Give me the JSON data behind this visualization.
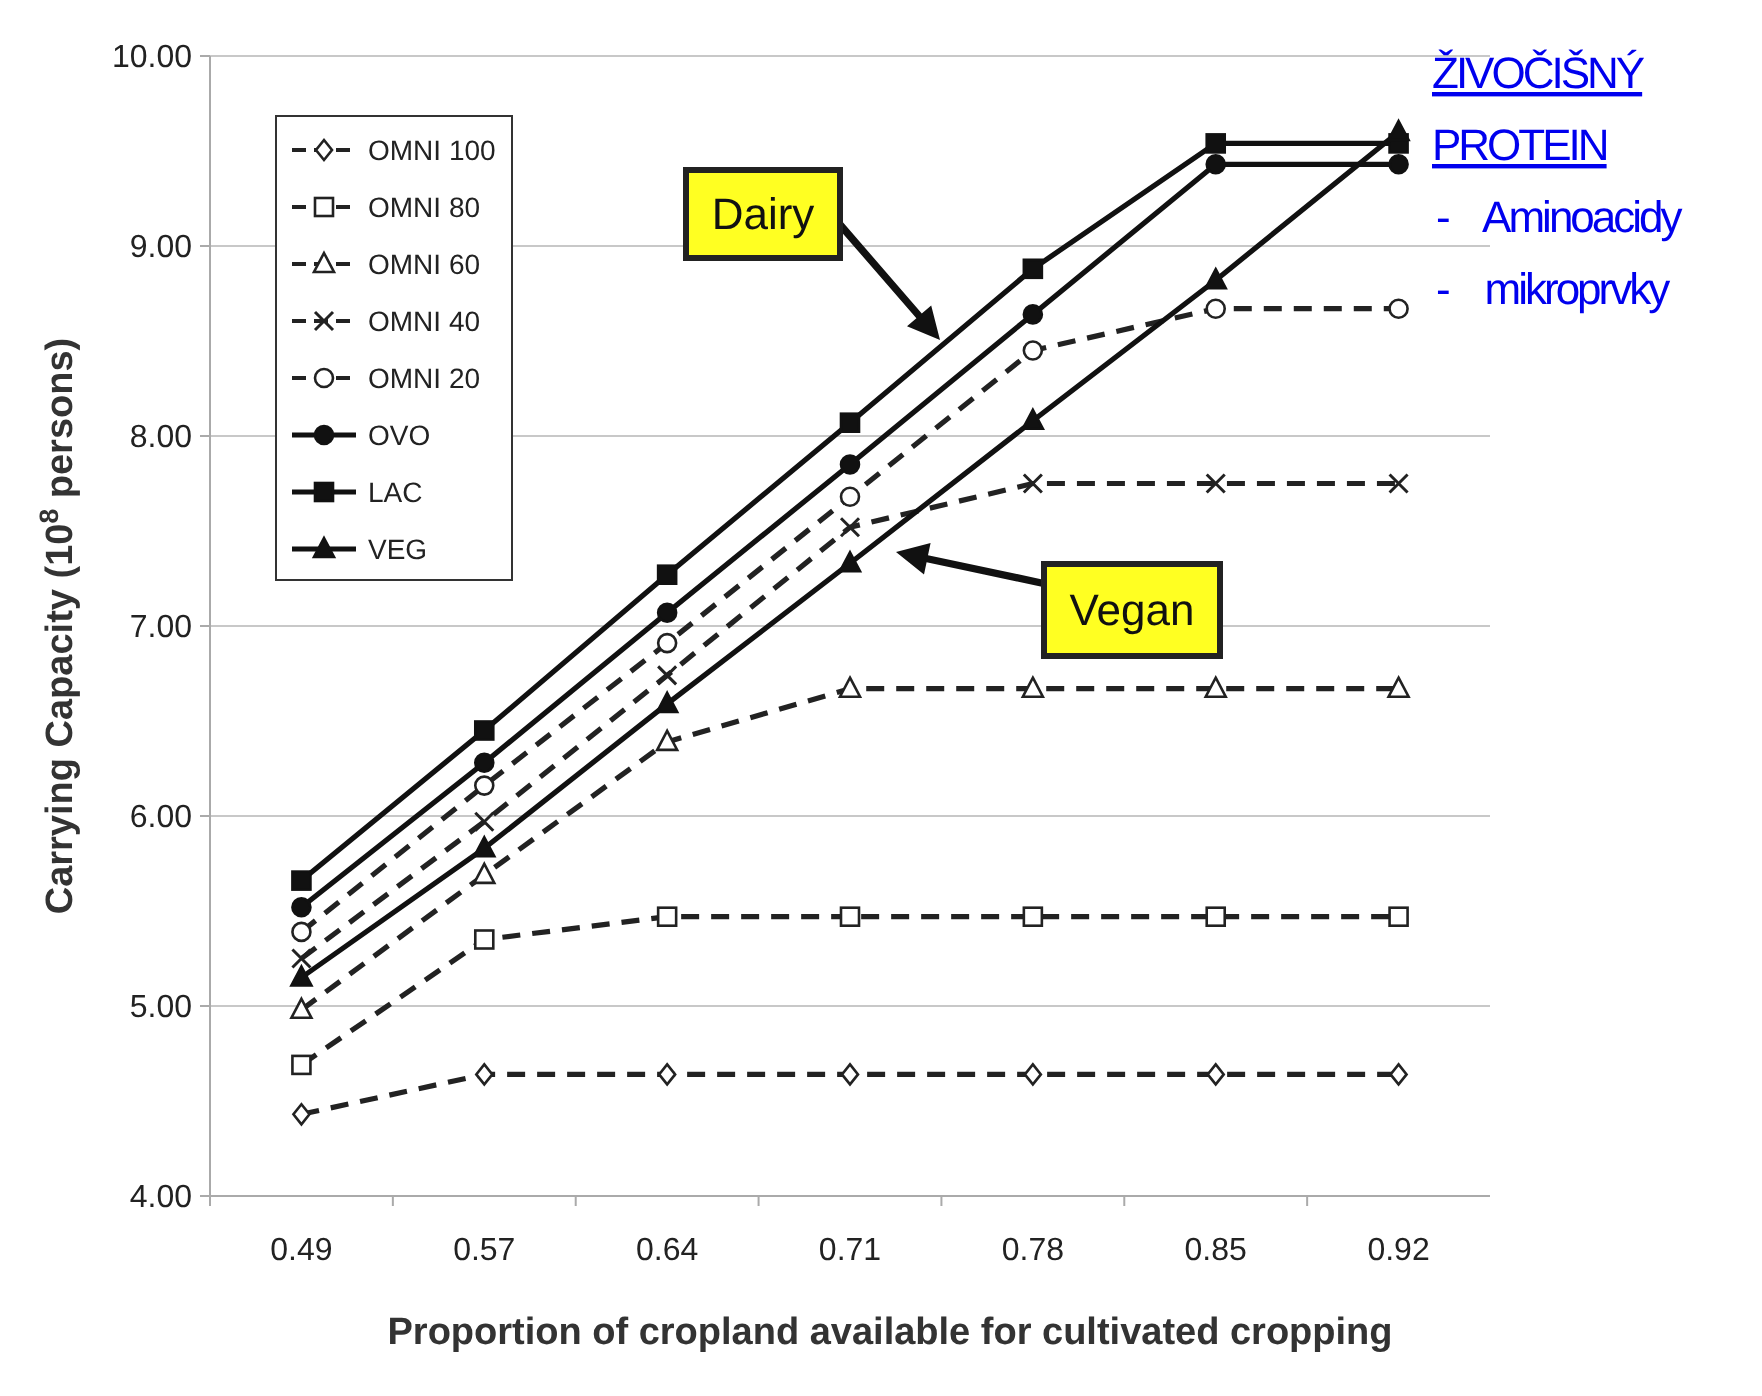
{
  "chart_data": {
    "type": "line",
    "categories": [
      "0.49",
      "0.57",
      "0.64",
      "0.71",
      "0.78",
      "0.85",
      "0.92"
    ],
    "series": [
      {
        "name": "OMNI 100",
        "color": "#222222",
        "marker": "diamond",
        "line_style": "dashed",
        "values": [
          4.43,
          4.64,
          4.64,
          4.64,
          4.64,
          4.64,
          4.64
        ]
      },
      {
        "name": "OMNI 80",
        "color": "#222222",
        "marker": "square",
        "line_style": "dashed",
        "values": [
          4.69,
          5.35,
          5.47,
          5.47,
          5.47,
          5.47,
          5.47
        ]
      },
      {
        "name": "OMNI 60",
        "color": "#222222",
        "marker": "triangle",
        "line_style": "dashed",
        "values": [
          4.98,
          5.69,
          6.39,
          6.67,
          6.67,
          6.67,
          6.67
        ]
      },
      {
        "name": "OMNI 40",
        "color": "#222222",
        "marker": "cross",
        "line_style": "dashed",
        "values": [
          5.25,
          5.97,
          6.74,
          7.52,
          7.75,
          7.75,
          7.75
        ]
      },
      {
        "name": "OMNI 20",
        "color": "#222222",
        "marker": "circle",
        "line_style": "dashed",
        "values": [
          5.39,
          6.16,
          6.91,
          7.68,
          8.45,
          8.67,
          8.67
        ]
      },
      {
        "name": "OVO",
        "color": "#111111",
        "marker": "circle",
        "line_style": "solid",
        "values": [
          5.52,
          6.28,
          7.07,
          7.85,
          8.64,
          9.43,
          9.43
        ]
      },
      {
        "name": "LAC",
        "color": "#111111",
        "marker": "square",
        "line_style": "solid",
        "values": [
          5.66,
          6.45,
          7.27,
          8.07,
          8.88,
          9.54,
          9.54
        ]
      },
      {
        "name": "VEG",
        "color": "#111111",
        "marker": "triangle",
        "line_style": "solid",
        "values": [
          5.15,
          5.83,
          6.59,
          7.33,
          8.08,
          8.82,
          9.6
        ]
      }
    ],
    "xlabel": "Proportion of cropland available for cultivated cropping",
    "ylabel": "Carrying Capacity (10$^{8}$ persons)",
    "ylim": [
      4,
      10
    ],
    "yticks": [
      {
        "value": 4,
        "label": "4.00"
      },
      {
        "value": 5,
        "label": "5.00"
      },
      {
        "value": 6,
        "label": "6.00"
      },
      {
        "value": 7,
        "label": "7.00"
      },
      {
        "value": 8,
        "label": "8.00"
      },
      {
        "value": 9,
        "label": "9.00"
      },
      {
        "value": 10,
        "label": "10.00"
      }
    ],
    "grid": "y",
    "legend": "top left",
    "annotations": [
      "Dairy",
      "Vegan",
      "ŽIVOČIŠNÝ PROTEIN",
      "- Aminoacidy",
      "- mikroprvky"
    ]
  }
}
